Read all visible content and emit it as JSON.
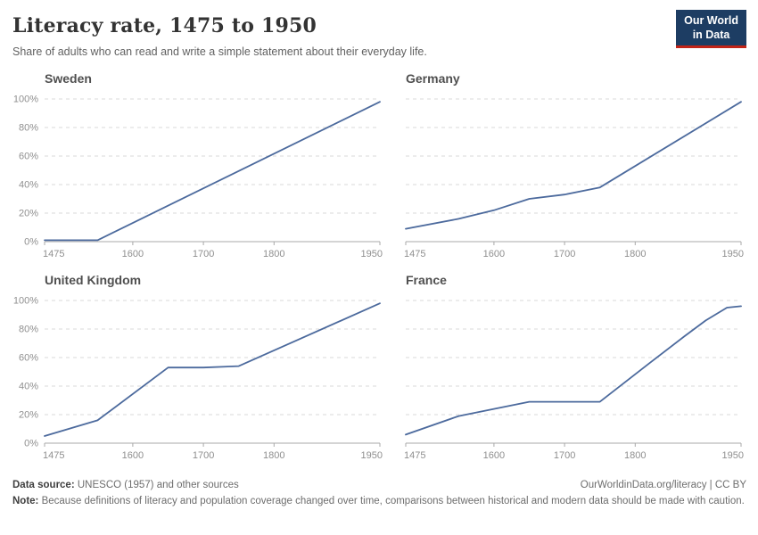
{
  "header": {
    "title": "Literacy rate, 1475 to 1950",
    "subtitle": "Share of adults who can read and write a simple statement about their everyday life.",
    "logo": {
      "line1": "Our World",
      "line2": "in Data",
      "bg_color": "#1d3d63",
      "accent_color": "#c22417"
    }
  },
  "chart_data": [
    {
      "type": "line",
      "title": "Sweden",
      "x": [
        1475,
        1550,
        1950
      ],
      "values": [
        1,
        1,
        98
      ],
      "xlabel": "",
      "ylabel": "",
      "xlim": [
        1475,
        1950
      ],
      "ylim": [
        0,
        100
      ],
      "grid": true,
      "legend": "none"
    },
    {
      "type": "line",
      "title": "Germany",
      "x": [
        1475,
        1550,
        1600,
        1650,
        1700,
        1750,
        1950
      ],
      "values": [
        9,
        16,
        22,
        30,
        33,
        38,
        98
      ],
      "xlabel": "",
      "ylabel": "",
      "xlim": [
        1475,
        1950
      ],
      "ylim": [
        0,
        100
      ],
      "grid": true,
      "legend": "none"
    },
    {
      "type": "line",
      "title": "United Kingdom",
      "x": [
        1475,
        1550,
        1650,
        1700,
        1750,
        1950
      ],
      "values": [
        5,
        16,
        53,
        53,
        54,
        98
      ],
      "xlabel": "",
      "ylabel": "",
      "xlim": [
        1475,
        1950
      ],
      "ylim": [
        0,
        100
      ],
      "grid": true,
      "legend": "none"
    },
    {
      "type": "line",
      "title": "France",
      "x": [
        1475,
        1550,
        1600,
        1650,
        1700,
        1750,
        1820,
        1870,
        1900,
        1930,
        1950
      ],
      "values": [
        6,
        19,
        24,
        29,
        29,
        29,
        56,
        75,
        86,
        95,
        96
      ],
      "xlabel": "",
      "ylabel": "",
      "xlim": [
        1475,
        1950
      ],
      "ylim": [
        0,
        100
      ],
      "grid": true,
      "legend": "none"
    }
  ],
  "axes": {
    "xlim": [
      1475,
      1950
    ],
    "x_ticks": [
      1475,
      1600,
      1700,
      1800,
      1950
    ],
    "ylim": [
      0,
      100
    ],
    "y_ticks": [
      0,
      20,
      40,
      60,
      80,
      100
    ],
    "y_tick_labels": [
      "0%",
      "20%",
      "40%",
      "60%",
      "80%",
      "100%"
    ]
  },
  "style": {
    "line_color": "#4c6a9d",
    "grid_color": "#dadada",
    "axis_color": "#a8a8a8",
    "tick_text_color": "#8f8f8f"
  },
  "footer": {
    "source_label": "Data source:",
    "source_text": " UNESCO (1957) and other sources",
    "link": "OurWorldinData.org/literacy | CC BY",
    "note_label": "Note:",
    "note_text": " Because definitions of literacy and population coverage changed over time, comparisons between historical and modern data should be made with caution."
  }
}
